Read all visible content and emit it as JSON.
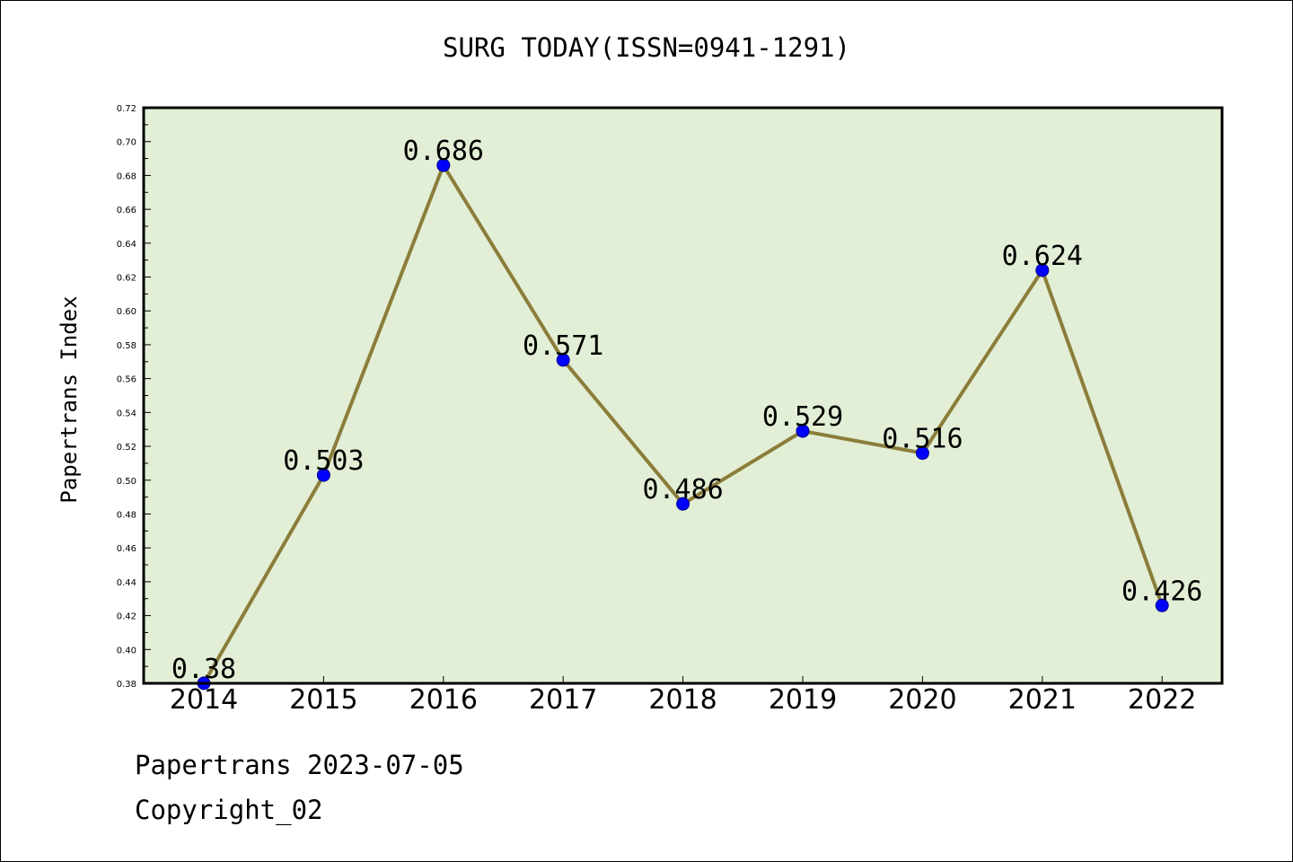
{
  "chart_data": {
    "type": "line",
    "title": "SURG TODAY(ISSN=0941-1291)",
    "xlabel": "",
    "ylabel": "Papertrans Index",
    "categories": [
      "2014",
      "2015",
      "2016",
      "2017",
      "2018",
      "2019",
      "2020",
      "2021",
      "2022"
    ],
    "series": [
      {
        "values": [
          0.38,
          0.503,
          0.686,
          0.571,
          0.486,
          0.529,
          0.516,
          0.624,
          0.426
        ],
        "labels": [
          "0.38",
          "0.503",
          "0.686",
          "0.571",
          "0.486",
          "0.529",
          "0.516",
          "0.624",
          "0.426"
        ]
      }
    ],
    "ylim": [
      0.38,
      0.72
    ],
    "yticks": [
      "0.38",
      "0.40",
      "0.42",
      "0.44",
      "0.46",
      "0.48",
      "0.50",
      "0.52",
      "0.54",
      "0.56",
      "0.58",
      "0.60",
      "0.62",
      "0.64",
      "0.66",
      "0.68",
      "0.70",
      "0.72"
    ],
    "grid": false,
    "colors": {
      "plot_background": "#e2efd6",
      "line": "#8b7d3a",
      "marker": "#0000ff"
    }
  },
  "footer": {
    "date_line": "Papertrans 2023-07-05",
    "copyright_line": "Copyright_02"
  }
}
